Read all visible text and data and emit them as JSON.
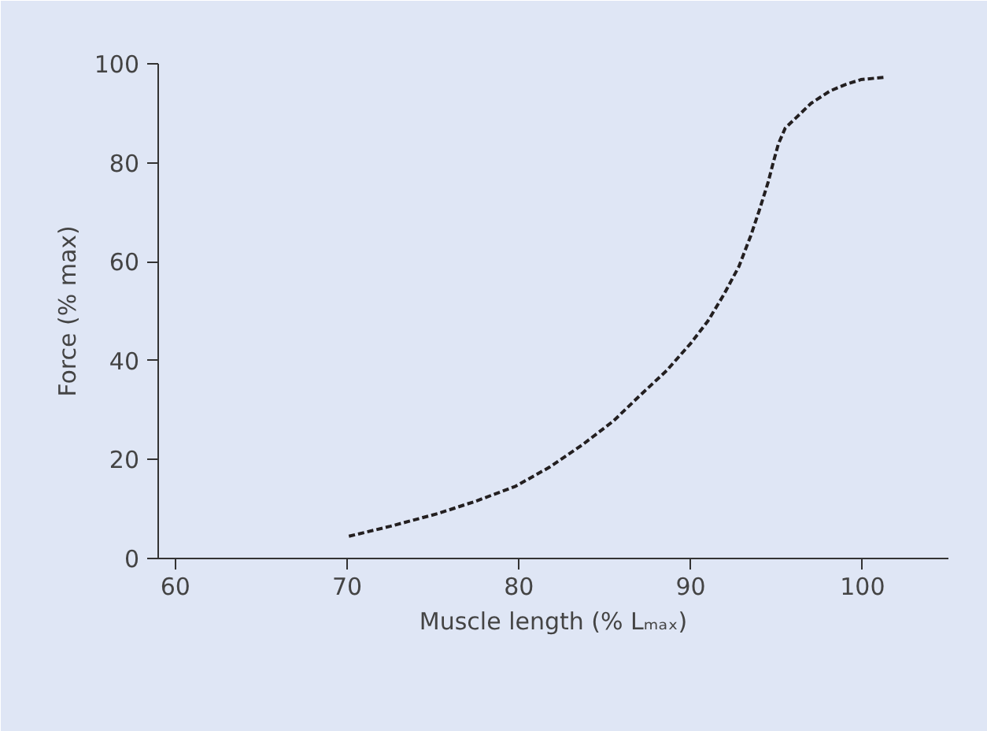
{
  "chart_data": {
    "type": "line",
    "xlabel": "Muscle length (% Lₘₐₓ)",
    "ylabel": "Force (% max)",
    "x": [
      70.1,
      72.5,
      75.3,
      77.5,
      79.8,
      81.8,
      83.7,
      85.5,
      87.0,
      88.6,
      90.0,
      91.0,
      91.9,
      92.8,
      93.5,
      94.0,
      94.5,
      94.8,
      95.1,
      95.5,
      96.1,
      97.0,
      98.1,
      99.0,
      99.9,
      101.3
    ],
    "series": [
      {
        "color": "#231f20",
        "values": [
          4.5,
          6.5,
          9.1,
          11.6,
          14.6,
          18.5,
          23,
          27.8,
          32.8,
          38,
          43.5,
          48,
          53.2,
          59,
          65.3,
          70.5,
          76,
          80,
          83.8,
          87,
          89,
          92,
          94.5,
          95.8,
          96.8,
          97.3
        ]
      }
    ],
    "xlim": [
      59,
      105
    ],
    "ylim": [
      0,
      100
    ],
    "xticks": [
      60,
      70,
      80,
      90,
      100
    ],
    "yticks": [
      0,
      20,
      40,
      60,
      80,
      100
    ],
    "grid": false,
    "marker": "none",
    "line_style": "dashed"
  }
}
